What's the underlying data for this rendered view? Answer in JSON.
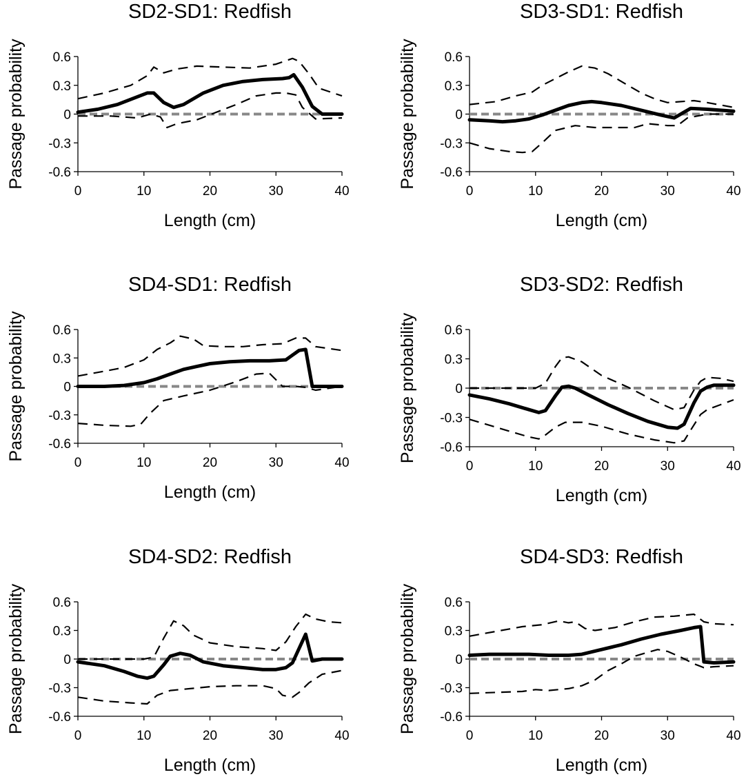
{
  "chart_data": [
    {
      "type": "line",
      "title": "SD2-SD1: Redfish",
      "xlabel": "Length (cm)",
      "ylabel": "Passage probability",
      "xlim": [
        0,
        40
      ],
      "ylim": [
        -0.6,
        0.6
      ],
      "xticks": [
        "0",
        "10",
        "20",
        "30",
        "40"
      ],
      "yticks": [
        "0.6",
        "0.3",
        "0",
        "-0.3",
        "-0.6"
      ],
      "grid": false,
      "legend": "none",
      "series": [
        {
          "role": "estimate",
          "color": "#000000",
          "x": [
            0,
            3,
            6,
            9,
            10.5,
            11.5,
            13,
            14.5,
            16,
            19,
            22,
            25,
            28,
            31,
            32,
            32.7,
            34,
            35.5,
            37,
            40
          ],
          "y": [
            0.02,
            0.05,
            0.1,
            0.18,
            0.22,
            0.22,
            0.12,
            0.07,
            0.1,
            0.22,
            0.3,
            0.34,
            0.36,
            0.37,
            0.38,
            0.41,
            0.28,
            0.08,
            0.0,
            0.0
          ]
        },
        {
          "role": "upper",
          "color": "#000000",
          "x": [
            0,
            4,
            8,
            10.5,
            11.5,
            13,
            15,
            18,
            22,
            26,
            30,
            32.5,
            33.5,
            35,
            36.5,
            40
          ],
          "y": [
            0.16,
            0.22,
            0.3,
            0.4,
            0.49,
            0.43,
            0.47,
            0.5,
            0.49,
            0.48,
            0.52,
            0.58,
            0.55,
            0.42,
            0.27,
            0.19
          ]
        },
        {
          "role": "lower",
          "color": "#000000",
          "x": [
            0,
            5,
            9,
            11,
            12.5,
            13.5,
            15,
            18,
            21,
            24,
            27,
            30,
            31.5,
            33,
            34,
            36,
            40
          ],
          "y": [
            -0.02,
            -0.02,
            -0.04,
            0.0,
            -0.03,
            -0.14,
            -0.1,
            -0.06,
            0.02,
            0.1,
            0.19,
            0.22,
            0.22,
            0.2,
            0.07,
            -0.05,
            -0.04
          ]
        },
        {
          "role": "zero",
          "color": "#888888",
          "x": [
            0,
            40
          ],
          "y": [
            0,
            0
          ]
        }
      ]
    },
    {
      "type": "line",
      "title": "SD3-SD1: Redfish",
      "xlabel": "Length (cm)",
      "ylabel": "Passage probability",
      "xlim": [
        0,
        40
      ],
      "ylim": [
        -0.6,
        0.6
      ],
      "xticks": [
        "0",
        "10",
        "20",
        "30",
        "40"
      ],
      "yticks": [
        "0.6",
        "0.3",
        "0",
        "-0.3",
        "-0.6"
      ],
      "grid": false,
      "legend": "none",
      "series": [
        {
          "role": "estimate",
          "color": "#000000",
          "x": [
            0,
            3,
            5,
            7,
            9,
            11,
            13,
            15,
            17,
            18.5,
            20,
            23,
            26,
            29,
            31,
            32.5,
            33.5,
            36,
            40
          ],
          "y": [
            -0.06,
            -0.07,
            -0.08,
            -0.07,
            -0.05,
            -0.01,
            0.04,
            0.09,
            0.12,
            0.13,
            0.12,
            0.09,
            0.04,
            -0.01,
            -0.04,
            0.02,
            0.06,
            0.05,
            0.03
          ]
        },
        {
          "role": "upper",
          "color": "#000000",
          "x": [
            0,
            4,
            7,
            9.5,
            11,
            13,
            15,
            17,
            19,
            21,
            23,
            26,
            28,
            30,
            32,
            34,
            36,
            40
          ],
          "y": [
            0.1,
            0.13,
            0.19,
            0.23,
            0.3,
            0.37,
            0.44,
            0.5,
            0.48,
            0.42,
            0.34,
            0.22,
            0.16,
            0.12,
            0.13,
            0.14,
            0.12,
            0.07
          ]
        },
        {
          "role": "lower",
          "color": "#000000",
          "x": [
            0,
            3,
            6,
            8,
            9.5,
            11,
            13,
            16,
            19,
            22,
            25,
            27,
            30,
            31.5,
            33,
            36,
            40
          ],
          "y": [
            -0.3,
            -0.36,
            -0.39,
            -0.4,
            -0.39,
            -0.3,
            -0.17,
            -0.12,
            -0.14,
            -0.14,
            -0.14,
            -0.1,
            -0.12,
            -0.12,
            -0.04,
            0.0,
            0.0
          ]
        },
        {
          "role": "zero",
          "color": "#888888",
          "x": [
            0,
            40
          ],
          "y": [
            0,
            0
          ]
        }
      ]
    },
    {
      "type": "line",
      "title": "SD4-SD1: Redfish",
      "xlabel": "Length (cm)",
      "ylabel": "Passage probability",
      "xlim": [
        0,
        40
      ],
      "ylim": [
        -0.6,
        0.6
      ],
      "xticks": [
        "0",
        "10",
        "20",
        "30",
        "40"
      ],
      "yticks": [
        "0.6",
        "0.3",
        "0",
        "-0.3",
        "-0.6"
      ],
      "grid": false,
      "legend": "none",
      "series": [
        {
          "role": "estimate",
          "color": "#000000",
          "x": [
            0,
            4,
            7,
            10,
            12,
            14,
            16,
            18,
            20,
            23,
            26,
            29,
            31.5,
            32.5,
            33.5,
            34.5,
            35.5,
            40
          ],
          "y": [
            0.0,
            0.0,
            0.01,
            0.04,
            0.08,
            0.13,
            0.18,
            0.21,
            0.24,
            0.26,
            0.27,
            0.27,
            0.28,
            0.33,
            0.38,
            0.39,
            0.0,
            0.0
          ]
        },
        {
          "role": "upper",
          "color": "#000000",
          "x": [
            0,
            4,
            7,
            10,
            12,
            14,
            15.5,
            17.5,
            19,
            22,
            25,
            28,
            31,
            33,
            34.5,
            36,
            40
          ],
          "y": [
            0.11,
            0.16,
            0.2,
            0.28,
            0.39,
            0.46,
            0.53,
            0.5,
            0.43,
            0.42,
            0.42,
            0.44,
            0.45,
            0.51,
            0.51,
            0.42,
            0.38
          ]
        },
        {
          "role": "lower",
          "color": "#000000",
          "x": [
            0,
            4,
            8,
            9.5,
            11,
            13,
            16,
            20,
            24,
            27,
            29,
            30,
            31,
            33,
            34.5,
            36,
            40
          ],
          "y": [
            -0.39,
            -0.41,
            -0.42,
            -0.4,
            -0.28,
            -0.15,
            -0.1,
            -0.04,
            0.05,
            0.13,
            0.14,
            0.07,
            0.0,
            0.0,
            -0.01,
            -0.04,
            0.0
          ]
        },
        {
          "role": "zero",
          "color": "#888888",
          "x": [
            0,
            40
          ],
          "y": [
            0,
            0
          ]
        }
      ]
    },
    {
      "type": "line",
      "title": "SD3-SD2: Redfish",
      "xlabel": "Length (cm)",
      "ylabel": "Passage probability",
      "xlim": [
        0,
        40
      ],
      "ylim": [
        -0.6,
        0.6
      ],
      "xticks": [
        "0",
        "10",
        "20",
        "30",
        "40"
      ],
      "yticks": [
        "0.6",
        "0.3",
        "0",
        "-0.3",
        "-0.6"
      ],
      "grid": false,
      "legend": "none",
      "series": [
        {
          "role": "estimate",
          "color": "#000000",
          "x": [
            0,
            3,
            6,
            9,
            10.5,
            11.5,
            13,
            14,
            15,
            16,
            18,
            21,
            24,
            27,
            30,
            31.5,
            32.5,
            34,
            35,
            36,
            37,
            40
          ],
          "y": [
            -0.07,
            -0.11,
            -0.16,
            -0.22,
            -0.25,
            -0.23,
            -0.08,
            0.01,
            0.02,
            0.0,
            -0.07,
            -0.17,
            -0.26,
            -0.34,
            -0.4,
            -0.41,
            -0.37,
            -0.15,
            -0.03,
            0.01,
            0.03,
            0.03
          ]
        },
        {
          "role": "upper",
          "color": "#000000",
          "x": [
            0,
            4,
            8,
            10,
            11.5,
            13,
            14,
            15,
            17,
            20,
            24,
            28,
            31,
            32.5,
            34,
            35,
            36,
            38,
            40
          ],
          "y": [
            0.0,
            0.0,
            0.0,
            0.0,
            0.05,
            0.22,
            0.31,
            0.32,
            0.27,
            0.13,
            0.01,
            -0.13,
            -0.22,
            -0.2,
            -0.02,
            0.07,
            0.11,
            0.1,
            0.07
          ]
        },
        {
          "role": "lower",
          "color": "#000000",
          "x": [
            0,
            4,
            7,
            9,
            10.5,
            11.5,
            13,
            14.5,
            17,
            20,
            24,
            28,
            31,
            32.5,
            33.5,
            35,
            36,
            38,
            40
          ],
          "y": [
            -0.32,
            -0.4,
            -0.46,
            -0.5,
            -0.52,
            -0.48,
            -0.4,
            -0.35,
            -0.35,
            -0.39,
            -0.47,
            -0.53,
            -0.56,
            -0.54,
            -0.43,
            -0.27,
            -0.22,
            -0.17,
            -0.12
          ]
        },
        {
          "role": "zero",
          "color": "#888888",
          "x": [
            0,
            40
          ],
          "y": [
            0,
            0
          ]
        }
      ]
    },
    {
      "type": "line",
      "title": "SD4-SD2: Redfish",
      "xlabel": "Length (cm)",
      "ylabel": "Passage probability",
      "xlim": [
        0,
        40
      ],
      "ylim": [
        -0.6,
        0.6
      ],
      "xticks": [
        "0",
        "10",
        "20",
        "30",
        "40"
      ],
      "yticks": [
        "0.6",
        "0.3",
        "0",
        "-0.3",
        "-0.6"
      ],
      "grid": false,
      "legend": "none",
      "series": [
        {
          "role": "estimate",
          "color": "#000000",
          "x": [
            0,
            4,
            7,
            9,
            10.5,
            11.5,
            13,
            14,
            15.5,
            17,
            19,
            22,
            25,
            28,
            30,
            31.5,
            32.5,
            34.5,
            35.5,
            37,
            40
          ],
          "y": [
            -0.03,
            -0.07,
            -0.13,
            -0.18,
            -0.2,
            -0.18,
            -0.06,
            0.03,
            0.06,
            0.04,
            -0.03,
            -0.07,
            -0.09,
            -0.11,
            -0.11,
            -0.09,
            -0.04,
            0.26,
            -0.02,
            0.0,
            0.0
          ]
        },
        {
          "role": "upper",
          "color": "#000000",
          "x": [
            0,
            4,
            8,
            10,
            11.5,
            13,
            14.5,
            16,
            17.5,
            20,
            24,
            28,
            30,
            31.5,
            33,
            34.5,
            36,
            38,
            40
          ],
          "y": [
            0.0,
            0.0,
            0.0,
            0.0,
            0.02,
            0.22,
            0.4,
            0.35,
            0.25,
            0.17,
            0.13,
            0.11,
            0.09,
            0.18,
            0.34,
            0.47,
            0.42,
            0.39,
            0.38
          ]
        },
        {
          "role": "lower",
          "color": "#000000",
          "x": [
            0,
            4,
            8,
            10.5,
            12,
            14,
            17,
            20,
            24,
            28,
            30,
            31,
            32.5,
            33.5,
            35,
            37,
            40
          ],
          "y": [
            -0.4,
            -0.44,
            -0.46,
            -0.47,
            -0.38,
            -0.33,
            -0.31,
            -0.29,
            -0.28,
            -0.28,
            -0.31,
            -0.38,
            -0.4,
            -0.35,
            -0.25,
            -0.16,
            -0.12
          ]
        },
        {
          "role": "zero",
          "color": "#888888",
          "x": [
            0,
            40
          ],
          "y": [
            0,
            0
          ]
        }
      ]
    },
    {
      "type": "line",
      "title": "SD4-SD3: Redfish",
      "xlabel": "Length (cm)",
      "ylabel": "Passage probability",
      "xlim": [
        0,
        40
      ],
      "ylim": [
        -0.6,
        0.6
      ],
      "xticks": [
        "0",
        "10",
        "20",
        "30",
        "40"
      ],
      "yticks": [
        "0.6",
        "0.3",
        "0",
        "-0.3",
        "-0.6"
      ],
      "grid": false,
      "legend": "none",
      "series": [
        {
          "role": "estimate",
          "color": "#000000",
          "x": [
            0,
            3,
            6,
            9,
            12,
            15,
            17,
            20,
            23,
            26,
            29,
            32,
            34,
            35,
            35.5,
            37,
            40
          ],
          "y": [
            0.04,
            0.05,
            0.05,
            0.05,
            0.04,
            0.04,
            0.05,
            0.1,
            0.15,
            0.21,
            0.26,
            0.3,
            0.33,
            0.34,
            -0.03,
            -0.04,
            -0.03
          ]
        },
        {
          "role": "upper",
          "color": "#000000",
          "x": [
            0,
            4,
            8,
            11,
            13.5,
            15,
            16,
            17.5,
            19,
            22,
            25,
            28,
            31,
            34,
            35.5,
            37,
            40
          ],
          "y": [
            0.24,
            0.29,
            0.34,
            0.36,
            0.4,
            0.38,
            0.39,
            0.32,
            0.3,
            0.33,
            0.39,
            0.44,
            0.45,
            0.47,
            0.39,
            0.37,
            0.36
          ]
        },
        {
          "role": "lower",
          "color": "#000000",
          "x": [
            0,
            4,
            8,
            10,
            12,
            15,
            17,
            19,
            21,
            23,
            25,
            27,
            28.5,
            30,
            32,
            34,
            35.5,
            37,
            40
          ],
          "y": [
            -0.36,
            -0.35,
            -0.34,
            -0.32,
            -0.33,
            -0.31,
            -0.28,
            -0.22,
            -0.12,
            -0.05,
            0.03,
            0.07,
            0.1,
            0.08,
            0.02,
            -0.05,
            -0.09,
            -0.08,
            -0.07
          ]
        },
        {
          "role": "zero",
          "color": "#888888",
          "x": [
            0,
            40
          ],
          "y": [
            0,
            0
          ]
        }
      ]
    }
  ]
}
